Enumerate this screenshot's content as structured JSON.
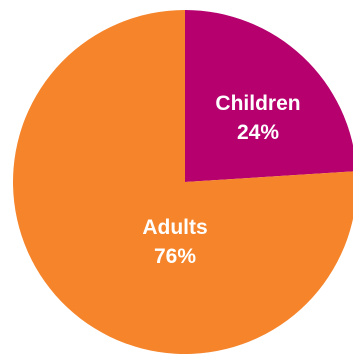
{
  "chart_data": {
    "type": "pie",
    "title": "",
    "start_angle_deg": 0,
    "direction": "clockwise",
    "slices": [
      {
        "label": "Children",
        "value": 24,
        "value_label": "24%",
        "color": "#b5006e"
      },
      {
        "label": "Adults",
        "value": 76,
        "value_label": "76%",
        "color": "#f5842a"
      }
    ],
    "legend": "none",
    "grid": false
  }
}
